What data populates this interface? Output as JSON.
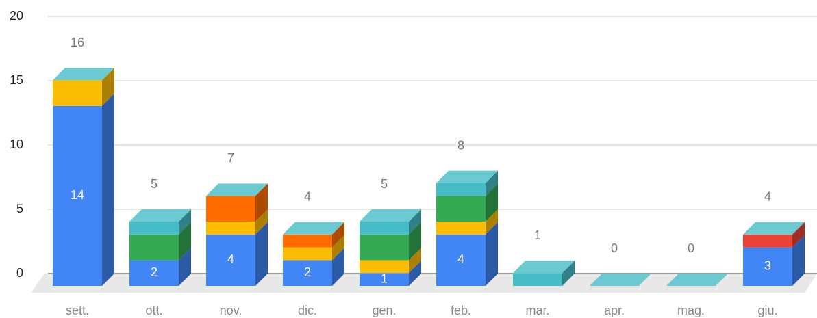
{
  "chart_data": {
    "type": "bar3d_stacked",
    "categories": [
      "sett.",
      "ott.",
      "nov.",
      "dic.",
      "gen.",
      "feb.",
      "mar.",
      "apr.",
      "mag.",
      "giu."
    ],
    "series": [
      {
        "color": "#4285f4",
        "values": [
          14,
          2,
          4,
          2,
          1,
          4,
          0,
          0,
          0,
          3
        ]
      },
      {
        "color": "#fbbc04",
        "values": [
          2,
          0,
          1,
          1,
          1,
          1,
          0,
          0,
          0,
          0
        ]
      },
      {
        "color": "#34a853",
        "values": [
          0,
          2,
          0,
          0,
          2,
          2,
          0,
          0,
          0,
          0
        ]
      },
      {
        "color": "#ff6d01",
        "values": [
          0,
          0,
          2,
          1,
          0,
          0,
          0,
          0,
          0,
          0
        ]
      },
      {
        "color": "#ea4335",
        "values": [
          0,
          0,
          0,
          0,
          0,
          0,
          0,
          0,
          0,
          1
        ]
      },
      {
        "color": "#46bdc6",
        "values": [
          0,
          1,
          0,
          0,
          1,
          1,
          1,
          0,
          0,
          0
        ]
      }
    ],
    "totals": [
      16,
      5,
      7,
      4,
      5,
      8,
      1,
      0,
      0,
      4
    ],
    "ylim": [
      0,
      20
    ],
    "yticks": [
      0,
      5,
      10,
      15,
      20
    ],
    "grid": true
  }
}
